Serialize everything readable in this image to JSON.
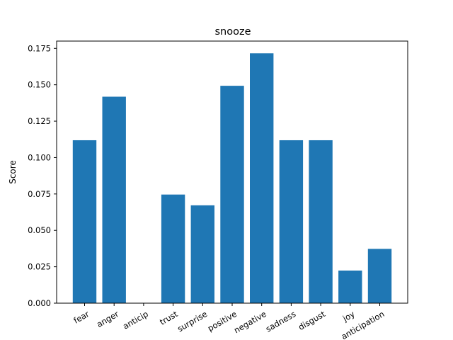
{
  "chart_data": {
    "type": "bar",
    "title": "snooze",
    "xlabel": "",
    "ylabel": "Score",
    "categories": [
      "fear",
      "anger",
      "anticip",
      "trust",
      "surprise",
      "positive",
      "negative",
      "sadness",
      "disgust",
      "joy",
      "anticipation"
    ],
    "values": [
      0.1119,
      0.1418,
      0.0,
      0.0746,
      0.0672,
      0.1493,
      0.1716,
      0.1119,
      0.1119,
      0.0224,
      0.0373
    ],
    "ylim": [
      0,
      0.18
    ],
    "yticks": [
      0.0,
      0.025,
      0.05,
      0.075,
      0.1,
      0.125,
      0.15,
      0.175
    ],
    "ytick_labels": [
      "0.000",
      "0.025",
      "0.050",
      "0.075",
      "0.100",
      "0.125",
      "0.150",
      "0.175"
    ],
    "bar_color": "#1f77b4",
    "grid": false
  }
}
